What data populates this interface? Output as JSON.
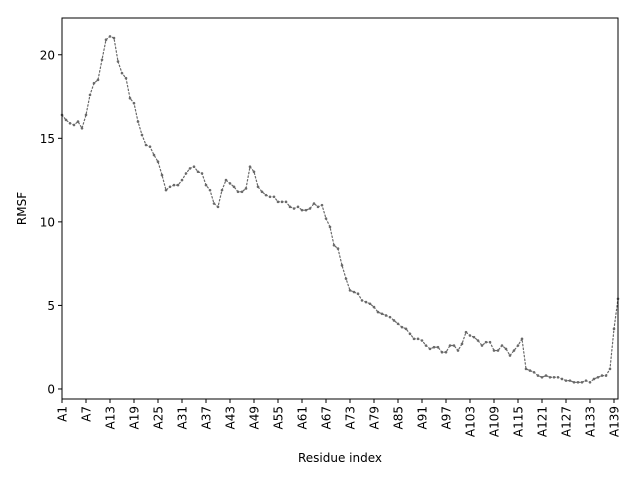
{
  "chart_data": {
    "type": "line",
    "xlabel": "Residue index",
    "ylabel": "RMSF",
    "ylim": [
      -0.6,
      22.2
    ],
    "yticks": [
      0,
      5,
      10,
      15,
      20
    ],
    "xticks": [
      "A1",
      "A7",
      "A13",
      "A19",
      "A25",
      "A31",
      "A37",
      "A43",
      "A49",
      "A55",
      "A61",
      "A67",
      "A73",
      "A79",
      "A85",
      "A91",
      "A97",
      "A103",
      "A109",
      "A115",
      "A121",
      "A127",
      "A133",
      "A139"
    ],
    "line_color": "#696969",
    "line_style": "dotted",
    "grid": false,
    "series": [
      {
        "x_start": 1,
        "values": [
          16.4,
          16.1,
          15.9,
          15.8,
          16.0,
          15.6,
          16.4,
          17.6,
          18.3,
          18.5,
          19.7,
          20.9,
          21.1,
          21.0,
          19.6,
          18.9,
          18.6,
          17.4,
          17.1,
          16.0,
          15.2,
          14.6,
          14.5,
          14.0,
          13.6,
          12.8,
          11.9,
          12.1,
          12.2,
          12.2,
          12.5,
          12.9,
          13.2,
          13.3,
          13.0,
          12.9,
          12.2,
          11.9,
          11.1,
          10.9,
          11.9,
          12.5,
          12.3,
          12.1,
          11.8,
          11.8,
          12.0,
          13.3,
          13.0,
          12.1,
          11.8,
          11.6,
          11.5,
          11.5,
          11.2,
          11.2,
          11.2,
          10.9,
          10.8,
          10.9,
          10.7,
          10.7,
          10.8,
          11.1,
          10.9,
          11.0,
          10.2,
          9.7,
          8.6,
          8.4,
          7.4,
          6.6,
          5.9,
          5.8,
          5.7,
          5.3,
          5.2,
          5.1,
          4.9,
          4.6,
          4.5,
          4.4,
          4.3,
          4.1,
          3.9,
          3.7,
          3.6,
          3.3,
          3.0,
          3.0,
          2.9,
          2.6,
          2.4,
          2.5,
          2.5,
          2.2,
          2.2,
          2.6,
          2.6,
          2.3,
          2.7,
          3.4,
          3.2,
          3.1,
          2.9,
          2.6,
          2.8,
          2.8,
          2.3,
          2.3,
          2.6,
          2.4,
          2.0,
          2.3,
          2.6,
          3.0,
          1.2,
          1.1,
          1.0,
          0.8,
          0.7,
          0.8,
          0.7,
          0.7,
          0.7,
          0.6,
          0.5,
          0.5,
          0.4,
          0.4,
          0.4,
          0.5,
          0.4,
          0.6,
          0.7,
          0.8,
          0.8,
          1.2,
          3.6,
          5.4
        ]
      }
    ]
  }
}
